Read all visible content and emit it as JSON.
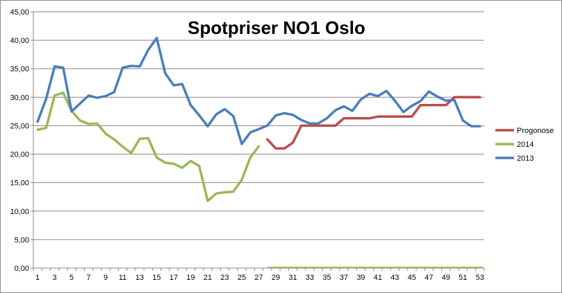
{
  "chart_data": {
    "type": "line",
    "title": "Spotpriser NO1 Oslo",
    "xlabel": "",
    "ylabel": "",
    "ylim": [
      0,
      45
    ],
    "y_ticks": [
      "0,00",
      "5,00",
      "10,00",
      "15,00",
      "20,00",
      "25,00",
      "30,00",
      "35,00",
      "40,00",
      "45,00"
    ],
    "x_ticks": [
      "1",
      "3",
      "5",
      "7",
      "9",
      "11",
      "13",
      "15",
      "17",
      "19",
      "21",
      "23",
      "25",
      "27",
      "29",
      "31",
      "33",
      "35",
      "37",
      "39",
      "41",
      "43",
      "45",
      "47",
      "49",
      "51",
      "53"
    ],
    "x_range": [
      1,
      53
    ],
    "grid": "horizontal",
    "legend_position": "right",
    "series": [
      {
        "name": "Progonose",
        "color": "#be4b48",
        "x": [
          28,
          29,
          30,
          31,
          32,
          33,
          34,
          35,
          36,
          37,
          38,
          39,
          40,
          41,
          42,
          43,
          44,
          45,
          46,
          47,
          48,
          49,
          50,
          51,
          52,
          53
        ],
        "values": [
          22.6,
          21.0,
          21.0,
          22.0,
          25.0,
          25.0,
          25.0,
          25.0,
          25.0,
          26.3,
          26.3,
          26.3,
          26.3,
          26.6,
          26.6,
          26.6,
          26.6,
          26.6,
          28.6,
          28.6,
          28.6,
          28.6,
          30.0,
          30.0,
          30.0,
          30.0
        ]
      },
      {
        "name": "2014",
        "color": "#98b954",
        "x": [
          1,
          2,
          3,
          4,
          5,
          6,
          7,
          8,
          9,
          10,
          11,
          12,
          13,
          14,
          15,
          16,
          17,
          18,
          19,
          20,
          21,
          22,
          23,
          24,
          25,
          26,
          27
        ],
        "values": [
          24.3,
          24.6,
          30.3,
          30.8,
          27.6,
          25.9,
          25.3,
          25.4,
          23.6,
          22.6,
          21.3,
          20.2,
          22.7,
          22.8,
          19.4,
          18.5,
          18.3,
          17.6,
          18.8,
          17.9,
          11.8,
          13.1,
          13.3,
          13.4,
          15.5,
          19.4,
          21.4
        ]
      },
      {
        "name": "2013",
        "color": "#4a7ebb",
        "x": [
          1,
          2,
          3,
          4,
          5,
          6,
          7,
          8,
          9,
          10,
          11,
          12,
          13,
          14,
          15,
          16,
          17,
          18,
          19,
          20,
          21,
          22,
          23,
          24,
          25,
          26,
          27,
          28,
          29,
          30,
          31,
          32,
          33,
          34,
          35,
          36,
          37,
          38,
          39,
          40,
          41,
          42,
          43,
          44,
          45,
          46,
          47,
          48,
          49,
          50,
          51,
          52,
          53
        ],
        "values": [
          25.7,
          29.7,
          35.4,
          35.2,
          27.5,
          28.9,
          30.3,
          29.9,
          30.2,
          30.9,
          35.2,
          35.5,
          35.4,
          38.3,
          40.4,
          34.2,
          32.1,
          32.3,
          28.6,
          26.8,
          24.9,
          27.0,
          27.9,
          26.7,
          21.8,
          23.8,
          24.4,
          25.0,
          26.8,
          27.2,
          26.9,
          26.0,
          25.4,
          25.4,
          26.3,
          27.7,
          28.4,
          27.6,
          29.6,
          30.6,
          30.2,
          31.1,
          29.4,
          27.4,
          28.5,
          29.3,
          31.0,
          30.1,
          29.4,
          29.5,
          25.9,
          24.9,
          24.9
        ]
      }
    ]
  }
}
